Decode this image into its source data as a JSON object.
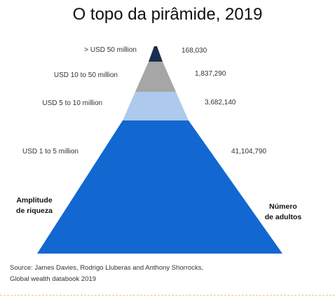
{
  "chart_data": {
    "type": "pyramid",
    "title": "O topo da pirâmide, 2019",
    "tiers": [
      {
        "category": "> USD 50 million",
        "value": 168030,
        "value_label": "168,030",
        "color": "#1a2f4f"
      },
      {
        "category": "USD  10 to 50 million",
        "value": 1837290,
        "value_label": "1,837,290",
        "color": "#a6a6a6"
      },
      {
        "category": "USD 5 to 10 million",
        "value": 3682140,
        "value_label": "3,682,140",
        "color": "#aec9ee"
      },
      {
        "category": "USD 1 to 5 million",
        "value": 41104790,
        "value_label": "41,104,790",
        "color": "#1268d0"
      }
    ],
    "left_axis_label": [
      "Amplitude",
      "de riqueza"
    ],
    "right_axis_label": [
      "Número",
      "de adultos"
    ]
  },
  "source": {
    "line1": "Source: James Davies, Rodrigo Lluberas and Anthony Shorrocks,",
    "line2": "Global wealth databook 2019"
  }
}
